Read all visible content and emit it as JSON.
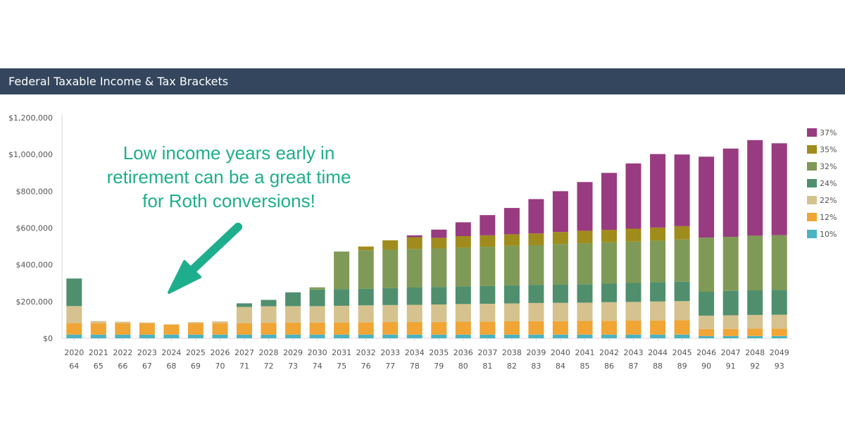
{
  "header": {
    "title": "Federal Taxable Income & Tax Brackets"
  },
  "annotation": {
    "text": "Low income years early in retirement can be a great time for Roth conversions!"
  },
  "colors": {
    "header_bg": "#34465d",
    "annotation": "#1fae8d",
    "series": {
      "10%": "#4bb3c2",
      "12%": "#f0a535",
      "22%": "#d6c28e",
      "24%": "#4f8f6e",
      "32%": "#7f9a56",
      "35%": "#a08c1c",
      "37%": "#993b80"
    }
  },
  "chart_data": {
    "type": "bar",
    "stacked": true,
    "title": "Federal Taxable Income & Tax Brackets",
    "ylim": [
      0,
      1200000
    ],
    "yticks": [
      "$0",
      "$200,000",
      "$400,000",
      "$600,000",
      "$800,000",
      "$1,000,000",
      "$1,200,000"
    ],
    "ytick_values": [
      0,
      200000,
      400000,
      600000,
      800000,
      1000000,
      1200000
    ],
    "categories": [
      "2020",
      "2021",
      "2022",
      "2023",
      "2024",
      "2025",
      "2026",
      "2027",
      "2028",
      "2029",
      "2030",
      "2031",
      "2032",
      "2033",
      "2034",
      "2035",
      "2036",
      "2037",
      "2038",
      "2039",
      "2040",
      "2041",
      "2042",
      "2043",
      "2044",
      "2045",
      "2046",
      "2047",
      "2048",
      "2049"
    ],
    "ages": [
      "64",
      "65",
      "66",
      "67",
      "68",
      "69",
      "70",
      "71",
      "72",
      "73",
      "74",
      "75",
      "76",
      "77",
      "78",
      "79",
      "80",
      "81",
      "82",
      "83",
      "84",
      "85",
      "86",
      "87",
      "88",
      "89",
      "90",
      "91",
      "92",
      "93"
    ],
    "legend_position": "right",
    "series": [
      {
        "name": "10%",
        "values": [
          20000,
          20000,
          20000,
          20000,
          20000,
          20000,
          20000,
          20000,
          20000,
          20000,
          20000,
          20000,
          20000,
          20000,
          20000,
          20000,
          20000,
          20000,
          20000,
          20000,
          20000,
          20000,
          20000,
          20000,
          20000,
          20000,
          12000,
          12000,
          12000,
          12000
        ]
      },
      {
        "name": "12%",
        "values": [
          62000,
          62000,
          62000,
          62000,
          55000,
          62000,
          62000,
          62000,
          64000,
          65000,
          65000,
          66000,
          67000,
          68000,
          68000,
          69000,
          70000,
          71000,
          72000,
          73000,
          73000,
          74000,
          75000,
          76000,
          77000,
          78000,
          38000,
          39000,
          40000,
          40000
        ]
      },
      {
        "name": "22%",
        "values": [
          93000,
          12000,
          8000,
          4000,
          0,
          6000,
          10000,
          88000,
          90000,
          90000,
          90000,
          91000,
          92000,
          93000,
          94000,
          95000,
          96000,
          97000,
          98000,
          99000,
          100000,
          100000,
          101000,
          102000,
          103000,
          104000,
          73000,
          74000,
          75000,
          76000
        ]
      },
      {
        "name": "24%",
        "values": [
          150000,
          0,
          0,
          0,
          0,
          0,
          0,
          20000,
          35000,
          75000,
          90000,
          90000,
          90000,
          92000,
          94000,
          95000,
          96000,
          97000,
          98000,
          99000,
          100000,
          100000,
          101000,
          103000,
          105000,
          106000,
          130000,
          132000,
          134000,
          135000
        ]
      },
      {
        "name": "32%",
        "values": [
          0,
          0,
          0,
          0,
          0,
          0,
          0,
          0,
          0,
          0,
          12000,
          205000,
          210000,
          210000,
          210000,
          210000,
          212000,
          213000,
          215000,
          215000,
          220000,
          223000,
          225000,
          225000,
          227000,
          230000,
          295000,
          295000,
          297000,
          298000
        ]
      },
      {
        "name": "35%",
        "values": [
          0,
          0,
          0,
          0,
          0,
          0,
          0,
          0,
          0,
          0,
          0,
          0,
          20000,
          50000,
          64000,
          57000,
          62000,
          62000,
          63000,
          64000,
          65000,
          68000,
          68000,
          70000,
          70000,
          72000,
          0,
          0,
          0,
          0
        ]
      },
      {
        "name": "37%",
        "values": [
          0,
          0,
          0,
          0,
          0,
          0,
          0,
          0,
          0,
          0,
          0,
          0,
          0,
          0,
          10000,
          45000,
          75000,
          110000,
          143000,
          187000,
          222000,
          265000,
          310000,
          355000,
          400000,
          390000,
          440000,
          480000,
          520000,
          500000
        ]
      }
    ]
  }
}
